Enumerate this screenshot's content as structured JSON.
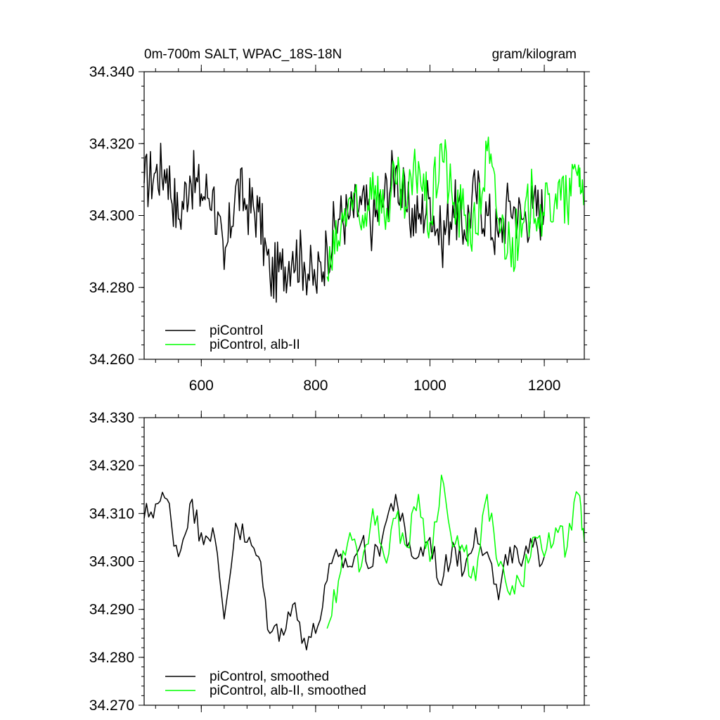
{
  "chart_data": [
    {
      "type": "line",
      "title": "0m-700m SALT, WPAC_18S-18N",
      "units": "gram/kilogram",
      "xlim": [
        500,
        1270
      ],
      "ylim": [
        34.26,
        34.34
      ],
      "xticks": [
        600,
        800,
        1000,
        1200
      ],
      "xtick_labels": [
        "600",
        "800",
        "1000",
        "1200"
      ],
      "yticks": [
        34.26,
        34.28,
        34.3,
        34.32,
        34.34
      ],
      "ytick_labels": [
        "34.260",
        "34.280",
        "34.300",
        "34.320",
        "34.340"
      ],
      "legend_position": "bottom-left",
      "series": [
        {
          "name": "piControl",
          "color": "#000000",
          "x": [
            500,
            520,
            540,
            560,
            580,
            600,
            620,
            640,
            660,
            680,
            700,
            720,
            740,
            760,
            780,
            800,
            820,
            840,
            860,
            880,
            900,
            920,
            940,
            960,
            980,
            1000,
            1020,
            1040,
            1060,
            1080,
            1100,
            1120,
            1140,
            1160,
            1180,
            1200
          ],
          "y": [
            34.309,
            34.312,
            34.313,
            34.299,
            34.311,
            34.306,
            34.307,
            34.285,
            34.308,
            34.303,
            34.301,
            34.283,
            34.285,
            34.29,
            34.287,
            34.281,
            34.291,
            34.299,
            34.3,
            34.303,
            34.298,
            34.305,
            34.313,
            34.301,
            34.299,
            34.305,
            34.293,
            34.303,
            34.296,
            34.307,
            34.3,
            34.294,
            34.304,
            34.299,
            34.302,
            34.301
          ]
        },
        {
          "name": "piControl, alb-II",
          "color": "#00ff00",
          "x": [
            820,
            840,
            860,
            880,
            900,
            920,
            940,
            960,
            980,
            1000,
            1020,
            1040,
            1060,
            1080,
            1100,
            1120,
            1140,
            1160,
            1180,
            1200,
            1220,
            1240,
            1260,
            1270
          ],
          "y": [
            34.283,
            34.293,
            34.305,
            34.296,
            34.312,
            34.3,
            34.309,
            34.302,
            34.315,
            34.298,
            34.32,
            34.303,
            34.3,
            34.295,
            34.318,
            34.299,
            34.292,
            34.294,
            34.306,
            34.3,
            34.306,
            34.303,
            34.314,
            34.303
          ]
        }
      ]
    },
    {
      "type": "line",
      "xlim": [
        500,
        1270
      ],
      "ylim": [
        34.27,
        34.33
      ],
      "xticks": [
        600,
        800,
        1000,
        1200
      ],
      "yticks": [
        34.27,
        34.28,
        34.29,
        34.3,
        34.31,
        34.32,
        34.33
      ],
      "ytick_labels": [
        "34.270",
        "34.280",
        "34.290",
        "34.300",
        "34.310",
        "34.320",
        "34.330"
      ],
      "legend_position": "bottom-left",
      "series": [
        {
          "name": "piControl, smoothed",
          "color": "#000000",
          "x": [
            500,
            520,
            540,
            560,
            580,
            600,
            620,
            640,
            660,
            680,
            700,
            720,
            740,
            760,
            780,
            800,
            820,
            840,
            860,
            880,
            900,
            920,
            940,
            960,
            980,
            1000,
            1020,
            1040,
            1060,
            1080,
            1100,
            1120,
            1140,
            1160,
            1180,
            1200
          ],
          "y": [
            34.309,
            34.312,
            34.313,
            34.301,
            34.312,
            34.306,
            34.307,
            34.288,
            34.308,
            34.304,
            34.301,
            34.285,
            34.286,
            34.291,
            34.284,
            34.285,
            34.296,
            34.301,
            34.299,
            34.304,
            34.299,
            34.307,
            34.314,
            34.303,
            34.301,
            34.305,
            34.295,
            34.304,
            34.298,
            34.307,
            34.302,
            34.292,
            34.303,
            34.299,
            34.303,
            34.301
          ]
        },
        {
          "name": "piControl, alb-II, smoothed",
          "color": "#00ff00",
          "x": [
            820,
            840,
            860,
            880,
            900,
            920,
            940,
            960,
            980,
            1000,
            1020,
            1040,
            1060,
            1080,
            1100,
            1120,
            1140,
            1160,
            1180,
            1200,
            1220,
            1240,
            1260,
            1270
          ],
          "y": [
            34.286,
            34.296,
            34.306,
            34.299,
            34.311,
            34.301,
            34.309,
            34.303,
            34.314,
            34.3,
            34.318,
            34.303,
            34.302,
            34.296,
            34.314,
            34.299,
            34.293,
            34.295,
            34.305,
            34.301,
            34.307,
            34.303,
            34.314,
            34.304
          ]
        }
      ]
    }
  ]
}
